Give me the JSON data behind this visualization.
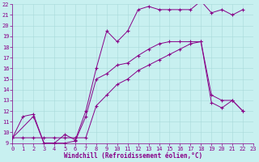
{
  "xlabel": "Windchill (Refroidissement éolien,°C)",
  "bg_color": "#c8f0f0",
  "line_color": "#880088",
  "ylim": [
    9,
    22
  ],
  "xlim": [
    0,
    23
  ],
  "yticks": [
    9,
    10,
    11,
    12,
    13,
    14,
    15,
    16,
    17,
    18,
    19,
    20,
    21,
    22
  ],
  "xticks": [
    0,
    1,
    2,
    3,
    4,
    5,
    6,
    7,
    8,
    9,
    10,
    11,
    12,
    13,
    14,
    15,
    16,
    17,
    18,
    19,
    20,
    21,
    22,
    23
  ],
  "line1_x": [
    0,
    1,
    2,
    3,
    4,
    5,
    6,
    7,
    8,
    9,
    10,
    11,
    12,
    13,
    14,
    15,
    16,
    17,
    18,
    19,
    20,
    21,
    22
  ],
  "line1_y": [
    9.5,
    11.5,
    11.7,
    9.0,
    9.0,
    9.8,
    9.3,
    12.0,
    16.0,
    19.5,
    18.5,
    19.5,
    21.5,
    21.8,
    21.5,
    21.5,
    21.5,
    21.5,
    22.3,
    21.2,
    21.5,
    21.0,
    21.5
  ],
  "line2_x": [
    0,
    1,
    2,
    3,
    4,
    5,
    6,
    7,
    8,
    9,
    10,
    11,
    12,
    13,
    14,
    15,
    16,
    17,
    18,
    19,
    20,
    21,
    22
  ],
  "line2_y": [
    9.5,
    9.5,
    9.5,
    9.5,
    9.5,
    9.5,
    9.5,
    9.5,
    12.5,
    13.5,
    14.5,
    15.0,
    15.8,
    16.3,
    16.8,
    17.3,
    17.8,
    18.3,
    18.5,
    12.8,
    12.3,
    13.0,
    12.0
  ],
  "line3_x": [
    0,
    2,
    3,
    4,
    5,
    6,
    7,
    8,
    9,
    10,
    11,
    12,
    13,
    14,
    15,
    16,
    17,
    18,
    19,
    20,
    21,
    22
  ],
  "line3_y": [
    9.5,
    11.5,
    9.0,
    9.0,
    9.0,
    9.2,
    11.5,
    15.0,
    15.5,
    16.3,
    16.5,
    17.2,
    17.8,
    18.3,
    18.5,
    18.5,
    18.5,
    18.5,
    13.5,
    13.0,
    13.0,
    12.0
  ]
}
